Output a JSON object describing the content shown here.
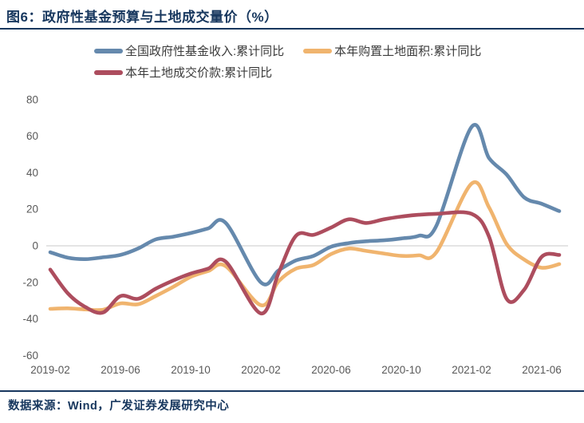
{
  "title": "图6：政府性基金预算与土地成交量价（%）",
  "footer": "数据来源：Wind，广发证券发展研究中心",
  "colors": {
    "title_text": "#17375e",
    "footer_text": "#17375e",
    "divider": "#17375e",
    "axis_text": "#595959",
    "legend_text": "#3b3b3b",
    "zero_gridline": "#c8c8c8",
    "background": "#ffffff"
  },
  "chart_data": {
    "type": "line",
    "title": "政府性基金预算与土地成交量价（%）",
    "categories": [
      "2019-02",
      "2019-03",
      "2019-04",
      "2019-05",
      "2019-06",
      "2019-07",
      "2019-08",
      "2019-09",
      "2019-10",
      "2019-11",
      "2019-12",
      "2020-02",
      "2020-03",
      "2020-04",
      "2020-05",
      "2020-06",
      "2020-07",
      "2020-08",
      "2020-09",
      "2020-10",
      "2020-11",
      "2020-12",
      "2021-02",
      "2021-03",
      "2021-04",
      "2021-05",
      "2021-06",
      "2021-07"
    ],
    "series": [
      {
        "name": "全国政府性基金收入:累计同比",
        "color": "#6589ad",
        "values": [
          -3.5,
          -6.5,
          -7.3,
          -6.3,
          -5,
          -1.5,
          3.5,
          5,
          7,
          9.5,
          12.5,
          -20,
          -13.5,
          -8,
          -5.5,
          -0.5,
          1.5,
          2.5,
          3,
          4,
          5.5,
          11,
          65,
          48,
          39,
          26.5,
          23,
          19
        ]
      },
      {
        "name": "本年购置土地面积:累计同比",
        "color": "#f0b46e",
        "values": [
          -34.5,
          -34.2,
          -34.8,
          -35,
          -31.5,
          -32,
          -27.5,
          -22.5,
          -17,
          -13.8,
          -11.2,
          -32.5,
          -19.5,
          -12.5,
          -10.5,
          -4.5,
          -1.5,
          -2.8,
          -4.2,
          -5.5,
          -5.2,
          -3.5,
          34,
          21,
          1,
          -7.5,
          -12,
          -10
        ]
      },
      {
        "name": "本年土地成交价款:累计同比",
        "color": "#ad4d5e",
        "values": [
          -13,
          -26,
          -33.5,
          -36.5,
          -27.5,
          -29,
          -23.5,
          -19,
          -15.2,
          -12.5,
          -8.7,
          -37,
          -15,
          5.5,
          6,
          10,
          14.5,
          12.5,
          14.5,
          16,
          17,
          17.5,
          17.5,
          5,
          -29,
          -24,
          -6,
          -5
        ]
      }
    ],
    "x_tick_labels": [
      "2019-02",
      "2019-06",
      "2019-10",
      "2020-02",
      "2020-06",
      "2020-10",
      "2021-02",
      "2021-06"
    ],
    "y_ticks": [
      80,
      60,
      40,
      20,
      0,
      -20,
      -40,
      -60
    ],
    "ylim": [
      -60,
      84
    ],
    "grid": "zero-line-only",
    "legend_position": "top",
    "line_style": "smooth",
    "note": "data skips January (cumulative YoY series)"
  }
}
